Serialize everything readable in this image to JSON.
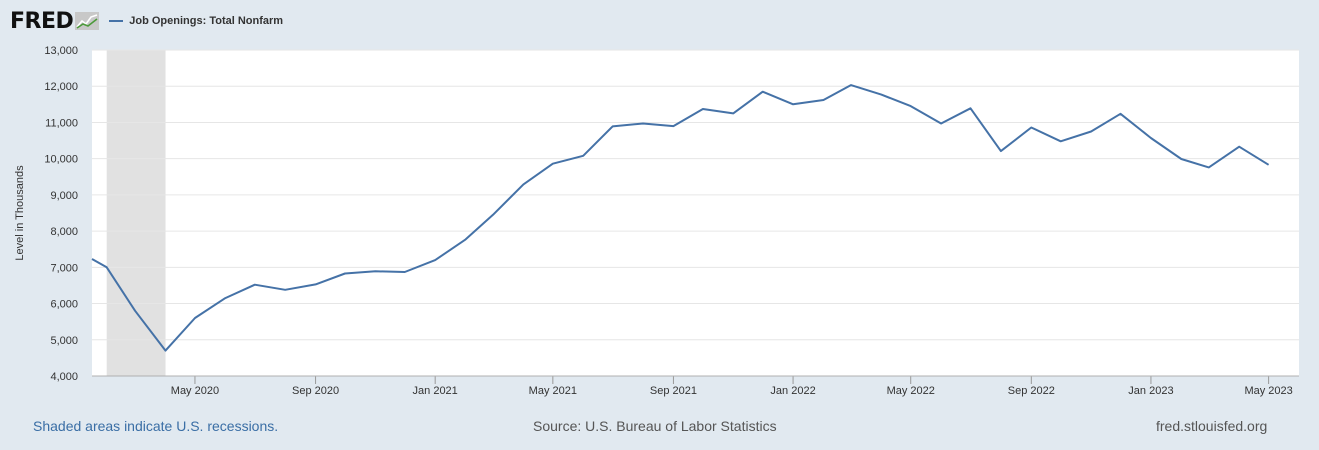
{
  "header": {
    "logo": "FRED",
    "logo_icon": "line-chart-icon",
    "legend_label": "Job Openings: Total Nonfarm"
  },
  "footer": {
    "recession_note": "Shaded areas indicate U.S. recessions.",
    "source": "Source: U.S. Bureau of Labor Statistics",
    "site": "fred.stlouisfed.org"
  },
  "colors": {
    "series": "#4572a7",
    "recession": "#e1e1e1",
    "plot_background": "#ffffff",
    "page_background": "#e1e9f0",
    "grid": "#e6e6e6"
  },
  "chart_data": {
    "type": "line",
    "ylabel": "Level in Thousands",
    "ylim": [
      4000,
      13000
    ],
    "xlim": [
      "2020-01-17",
      "2023-06-01"
    ],
    "grid": true,
    "yticks": [
      4000,
      5000,
      6000,
      7000,
      8000,
      9000,
      10000,
      11000,
      12000,
      13000
    ],
    "ytick_labels": [
      "4,000",
      "5,000",
      "6,000",
      "7,000",
      "8,000",
      "9,000",
      "10,000",
      "11,000",
      "12,000",
      "13,000"
    ],
    "xticks": [
      "2020-05-01",
      "2020-09-01",
      "2021-01-01",
      "2021-05-01",
      "2021-09-01",
      "2022-01-01",
      "2022-05-01",
      "2022-09-01",
      "2023-01-01",
      "2023-05-01"
    ],
    "xtick_labels": [
      "May 2020",
      "Sep 2020",
      "Jan 2021",
      "May 2021",
      "Sep 2021",
      "Jan 2022",
      "May 2022",
      "Sep 2022",
      "Jan 2023",
      "May 2023"
    ],
    "recessions": [
      {
        "start": "2020-02-01",
        "end": "2020-04-01"
      }
    ],
    "series": [
      {
        "name": "Job Openings: Total Nonfarm",
        "x": [
          "2020-01-01",
          "2020-02-01",
          "2020-03-01",
          "2020-04-01",
          "2020-05-01",
          "2020-06-01",
          "2020-07-01",
          "2020-08-01",
          "2020-09-01",
          "2020-10-01",
          "2020-11-01",
          "2020-12-01",
          "2021-01-01",
          "2021-02-01",
          "2021-03-01",
          "2021-04-01",
          "2021-05-01",
          "2021-06-01",
          "2021-07-01",
          "2021-08-01",
          "2021-09-01",
          "2021-10-01",
          "2021-11-01",
          "2021-12-01",
          "2022-01-01",
          "2022-02-01",
          "2022-03-01",
          "2022-04-01",
          "2022-05-01",
          "2022-06-01",
          "2022-07-01",
          "2022-08-01",
          "2022-09-01",
          "2022-10-01",
          "2022-11-01",
          "2022-12-01",
          "2023-01-01",
          "2023-02-01",
          "2023-03-01",
          "2023-04-01",
          "2023-05-01"
        ],
        "values": [
          7230,
          7000,
          5800,
          4700,
          5600,
          6150,
          6520,
          6380,
          6530,
          6830,
          6890,
          6870,
          7200,
          7770,
          8450,
          9290,
          9860,
          10080,
          10890,
          10970,
          10900,
          11370,
          11250,
          11850,
          11500,
          11620,
          12030,
          11770,
          11450,
          10970,
          11390,
          10210,
          10860,
          10480,
          10750,
          11240,
          10570,
          9990,
          9760,
          10330,
          9830
        ]
      }
    ]
  }
}
